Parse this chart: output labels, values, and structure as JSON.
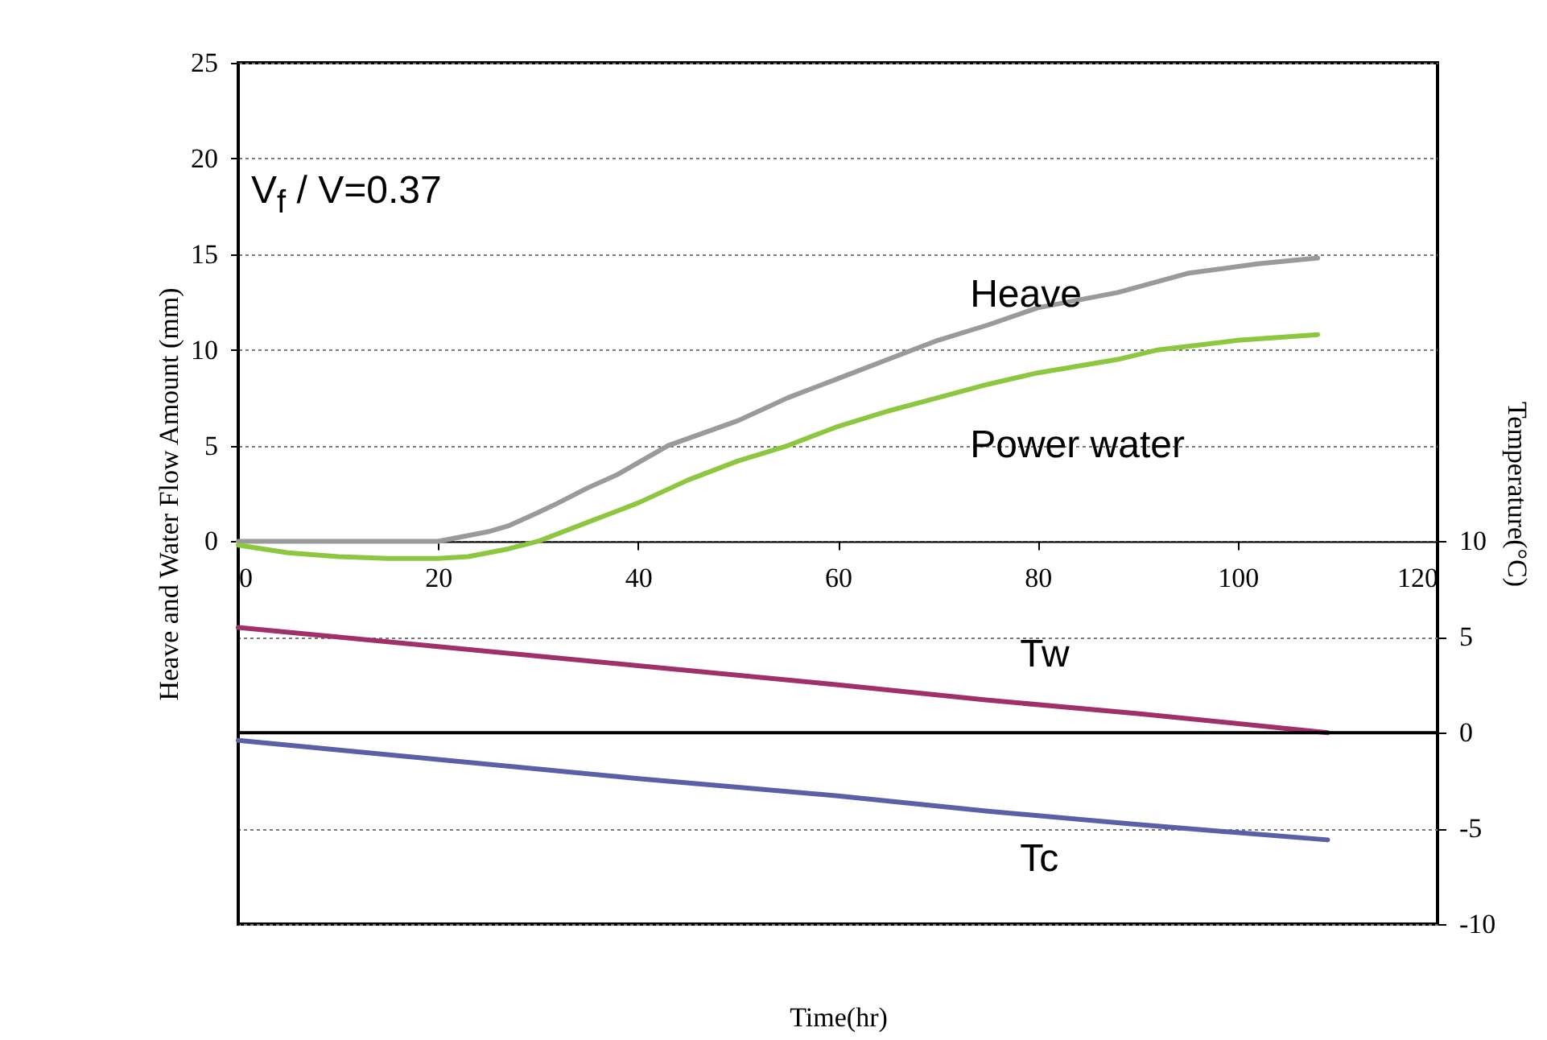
{
  "chart_data": {
    "type": "line",
    "xlabel": "Time(hr)",
    "ylabel": "Heave and Water Flow Amount (mm)",
    "y2label": "Temperature(°C)",
    "xlim": [
      0,
      120
    ],
    "xticks": [
      0,
      20,
      40,
      60,
      80,
      100,
      120
    ],
    "ylim": [
      -20,
      25
    ],
    "yticks": [
      0,
      5,
      10,
      15,
      20,
      25
    ],
    "y2lim": [
      -10,
      35
    ],
    "y2ticks": [
      -10,
      -5,
      0,
      5,
      10
    ],
    "grid": "y",
    "annotations": [
      "V$_{f}$ / V=0.37"
    ],
    "ref_lines": [
      {
        "axis": "y2",
        "value": 0,
        "color": "#000000",
        "line_style": "solid"
      }
    ],
    "series": [
      {
        "name": "Heave",
        "color": "#9a9a9a",
        "x": [
          0,
          10,
          20,
          22,
          25,
          27,
          30,
          32,
          35,
          38,
          43,
          50,
          55,
          60,
          65,
          70,
          75,
          80,
          88,
          95,
          102,
          108
        ],
        "values": [
          0,
          0,
          0,
          0.2,
          0.5,
          0.8,
          1.5,
          2,
          2.8,
          3.5,
          5,
          6.3,
          7.5,
          8.5,
          9.5,
          10.5,
          11.3,
          12.2,
          13,
          14,
          14.5,
          14.8
        ]
      },
      {
        "name": "Power water",
        "color": "#8dc63f",
        "x": [
          0,
          5,
          10,
          15,
          20,
          23,
          27,
          30,
          35,
          40,
          45,
          50,
          55,
          60,
          65,
          70,
          75,
          80,
          88,
          92,
          100,
          108
        ],
        "values": [
          -0.2,
          -0.6,
          -0.8,
          -0.9,
          -0.9,
          -0.8,
          -0.4,
          0,
          1,
          2,
          3.2,
          4.2,
          5,
          6,
          6.8,
          7.5,
          8.2,
          8.8,
          9.5,
          10,
          10.5,
          10.8
        ]
      },
      {
        "name": "Tw",
        "color": "#a0306a",
        "axis": "y2",
        "x": [
          0,
          20,
          40,
          60,
          75,
          90,
          109
        ],
        "values": [
          5.5,
          4.5,
          3.5,
          2.5,
          1.7,
          1,
          0
        ]
      },
      {
        "name": "Tc",
        "color": "#5a5fa8",
        "axis": "y2",
        "x": [
          0,
          20,
          40,
          60,
          75,
          90,
          109
        ],
        "values": [
          -0.4,
          -1.4,
          -2.4,
          -3.3,
          -4.1,
          -4.8,
          -5.6
        ]
      }
    ]
  }
}
